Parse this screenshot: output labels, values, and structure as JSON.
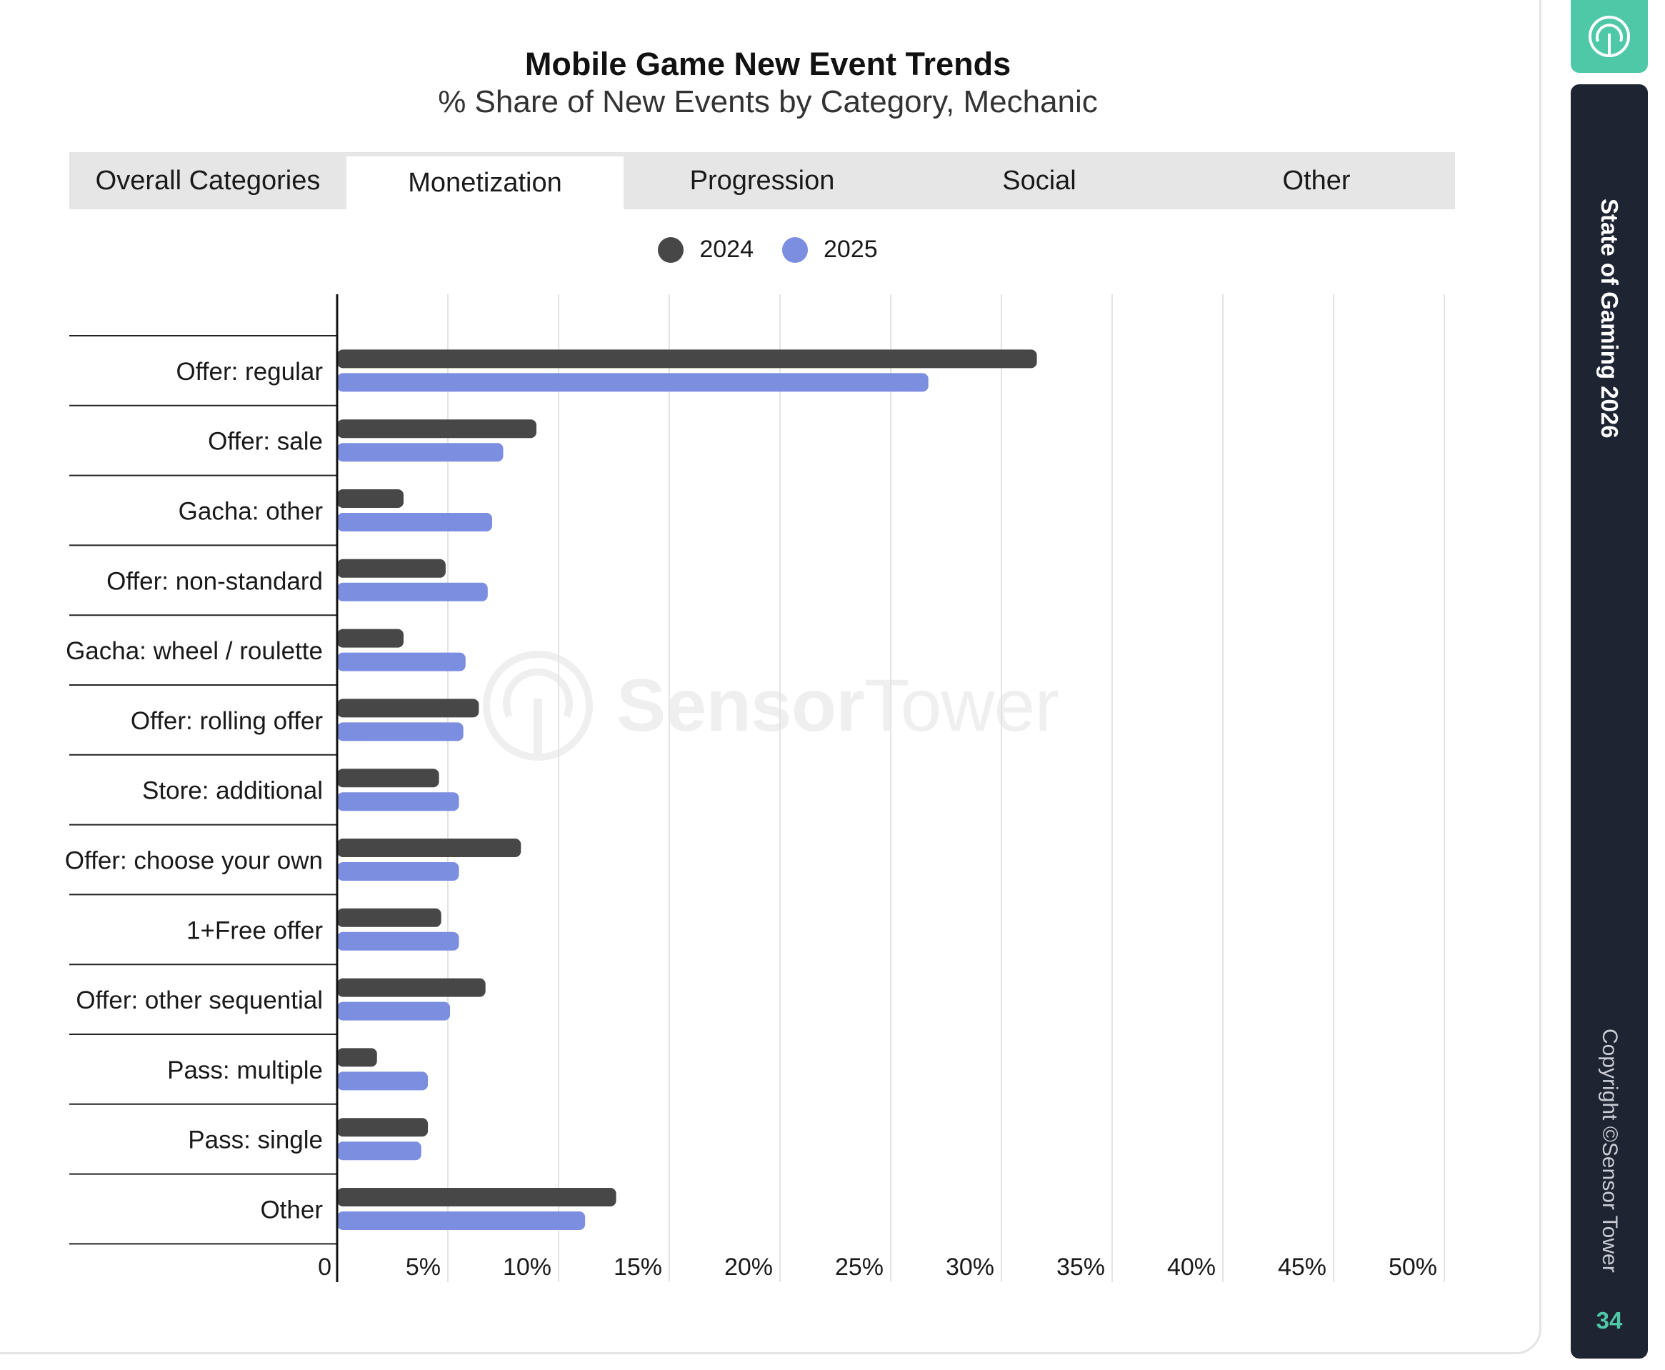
{
  "title": "Mobile Game New Event Trends",
  "subtitle": "% Share of New Events by Category, Mechanic",
  "tabs": [
    {
      "label": "Overall Categories",
      "active": false
    },
    {
      "label": "Monetization",
      "active": true
    },
    {
      "label": "Progression",
      "active": false
    },
    {
      "label": "Social",
      "active": false
    },
    {
      "label": "Other",
      "active": false
    }
  ],
  "legend": [
    {
      "label": "2024",
      "color": "#474747"
    },
    {
      "label": "2025",
      "color": "#7b8ee0"
    }
  ],
  "watermark": {
    "bold": "Sensor",
    "light": "Tower"
  },
  "sidebar": {
    "title": "State of Gaming 2026",
    "copyright": "Copyright ©Sensor Tower",
    "page_number": "34",
    "logo_icon": "sensor-tower-logo-icon"
  },
  "chart_data": {
    "type": "bar",
    "orientation": "horizontal",
    "categories": [
      "Offer: regular",
      "Offer: sale",
      "Gacha: other",
      "Offer: non-standard",
      "Gacha: wheel / roulette",
      "Offer: rolling offer",
      "Store: additional",
      "Offer: choose your own",
      "1+Free offer",
      "Offer: other sequential",
      "Pass: multiple",
      "Pass: single",
      "Other"
    ],
    "series": [
      {
        "name": "2024",
        "color": "#474747",
        "values": [
          31.6,
          9.0,
          3.0,
          4.9,
          3.0,
          6.4,
          4.6,
          8.3,
          4.7,
          6.7,
          1.8,
          4.1,
          12.6
        ]
      },
      {
        "name": "2025",
        "color": "#7b8ee0",
        "values": [
          26.7,
          7.5,
          7.0,
          6.8,
          5.8,
          5.7,
          5.5,
          5.5,
          5.5,
          5.1,
          4.1,
          3.8,
          11.2
        ]
      }
    ],
    "xlim": [
      0,
      50
    ],
    "xticks": [
      "0",
      "5%",
      "10%",
      "15%",
      "20%",
      "25%",
      "30%",
      "35%",
      "40%",
      "45%",
      "50%"
    ],
    "grid": true,
    "legend_position": "top-center"
  }
}
